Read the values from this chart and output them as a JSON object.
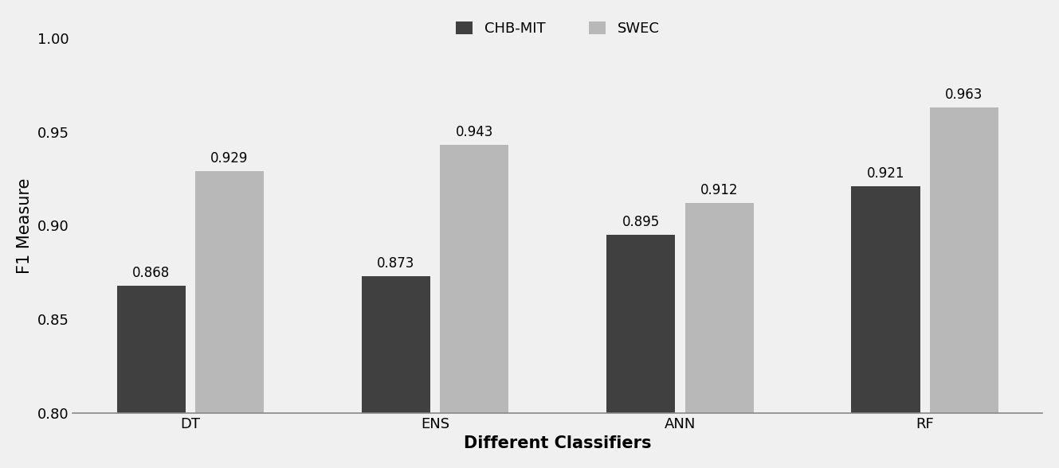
{
  "categories": [
    "DT",
    "ENS",
    "ANN",
    "RF"
  ],
  "chb_mit_values": [
    0.868,
    0.873,
    0.895,
    0.921
  ],
  "swec_values": [
    0.929,
    0.943,
    0.912,
    0.963
  ],
  "chb_mit_color": "#404040",
  "swec_color": "#b8b8b8",
  "ylabel": "F1 Measure",
  "xlabel": "Different Classifiers",
  "legend_labels": [
    "CHB-MIT",
    "SWEC"
  ],
  "ylim": [
    0.8,
    1.0
  ],
  "yticks": [
    0.8,
    0.85,
    0.9,
    0.95,
    1.0
  ],
  "bar_width": 0.28,
  "bar_gap": 0.04,
  "annotation_fontsize": 12,
  "axis_label_fontsize": 15,
  "tick_fontsize": 13,
  "legend_fontsize": 13,
  "background_color": "#f0f0f0"
}
